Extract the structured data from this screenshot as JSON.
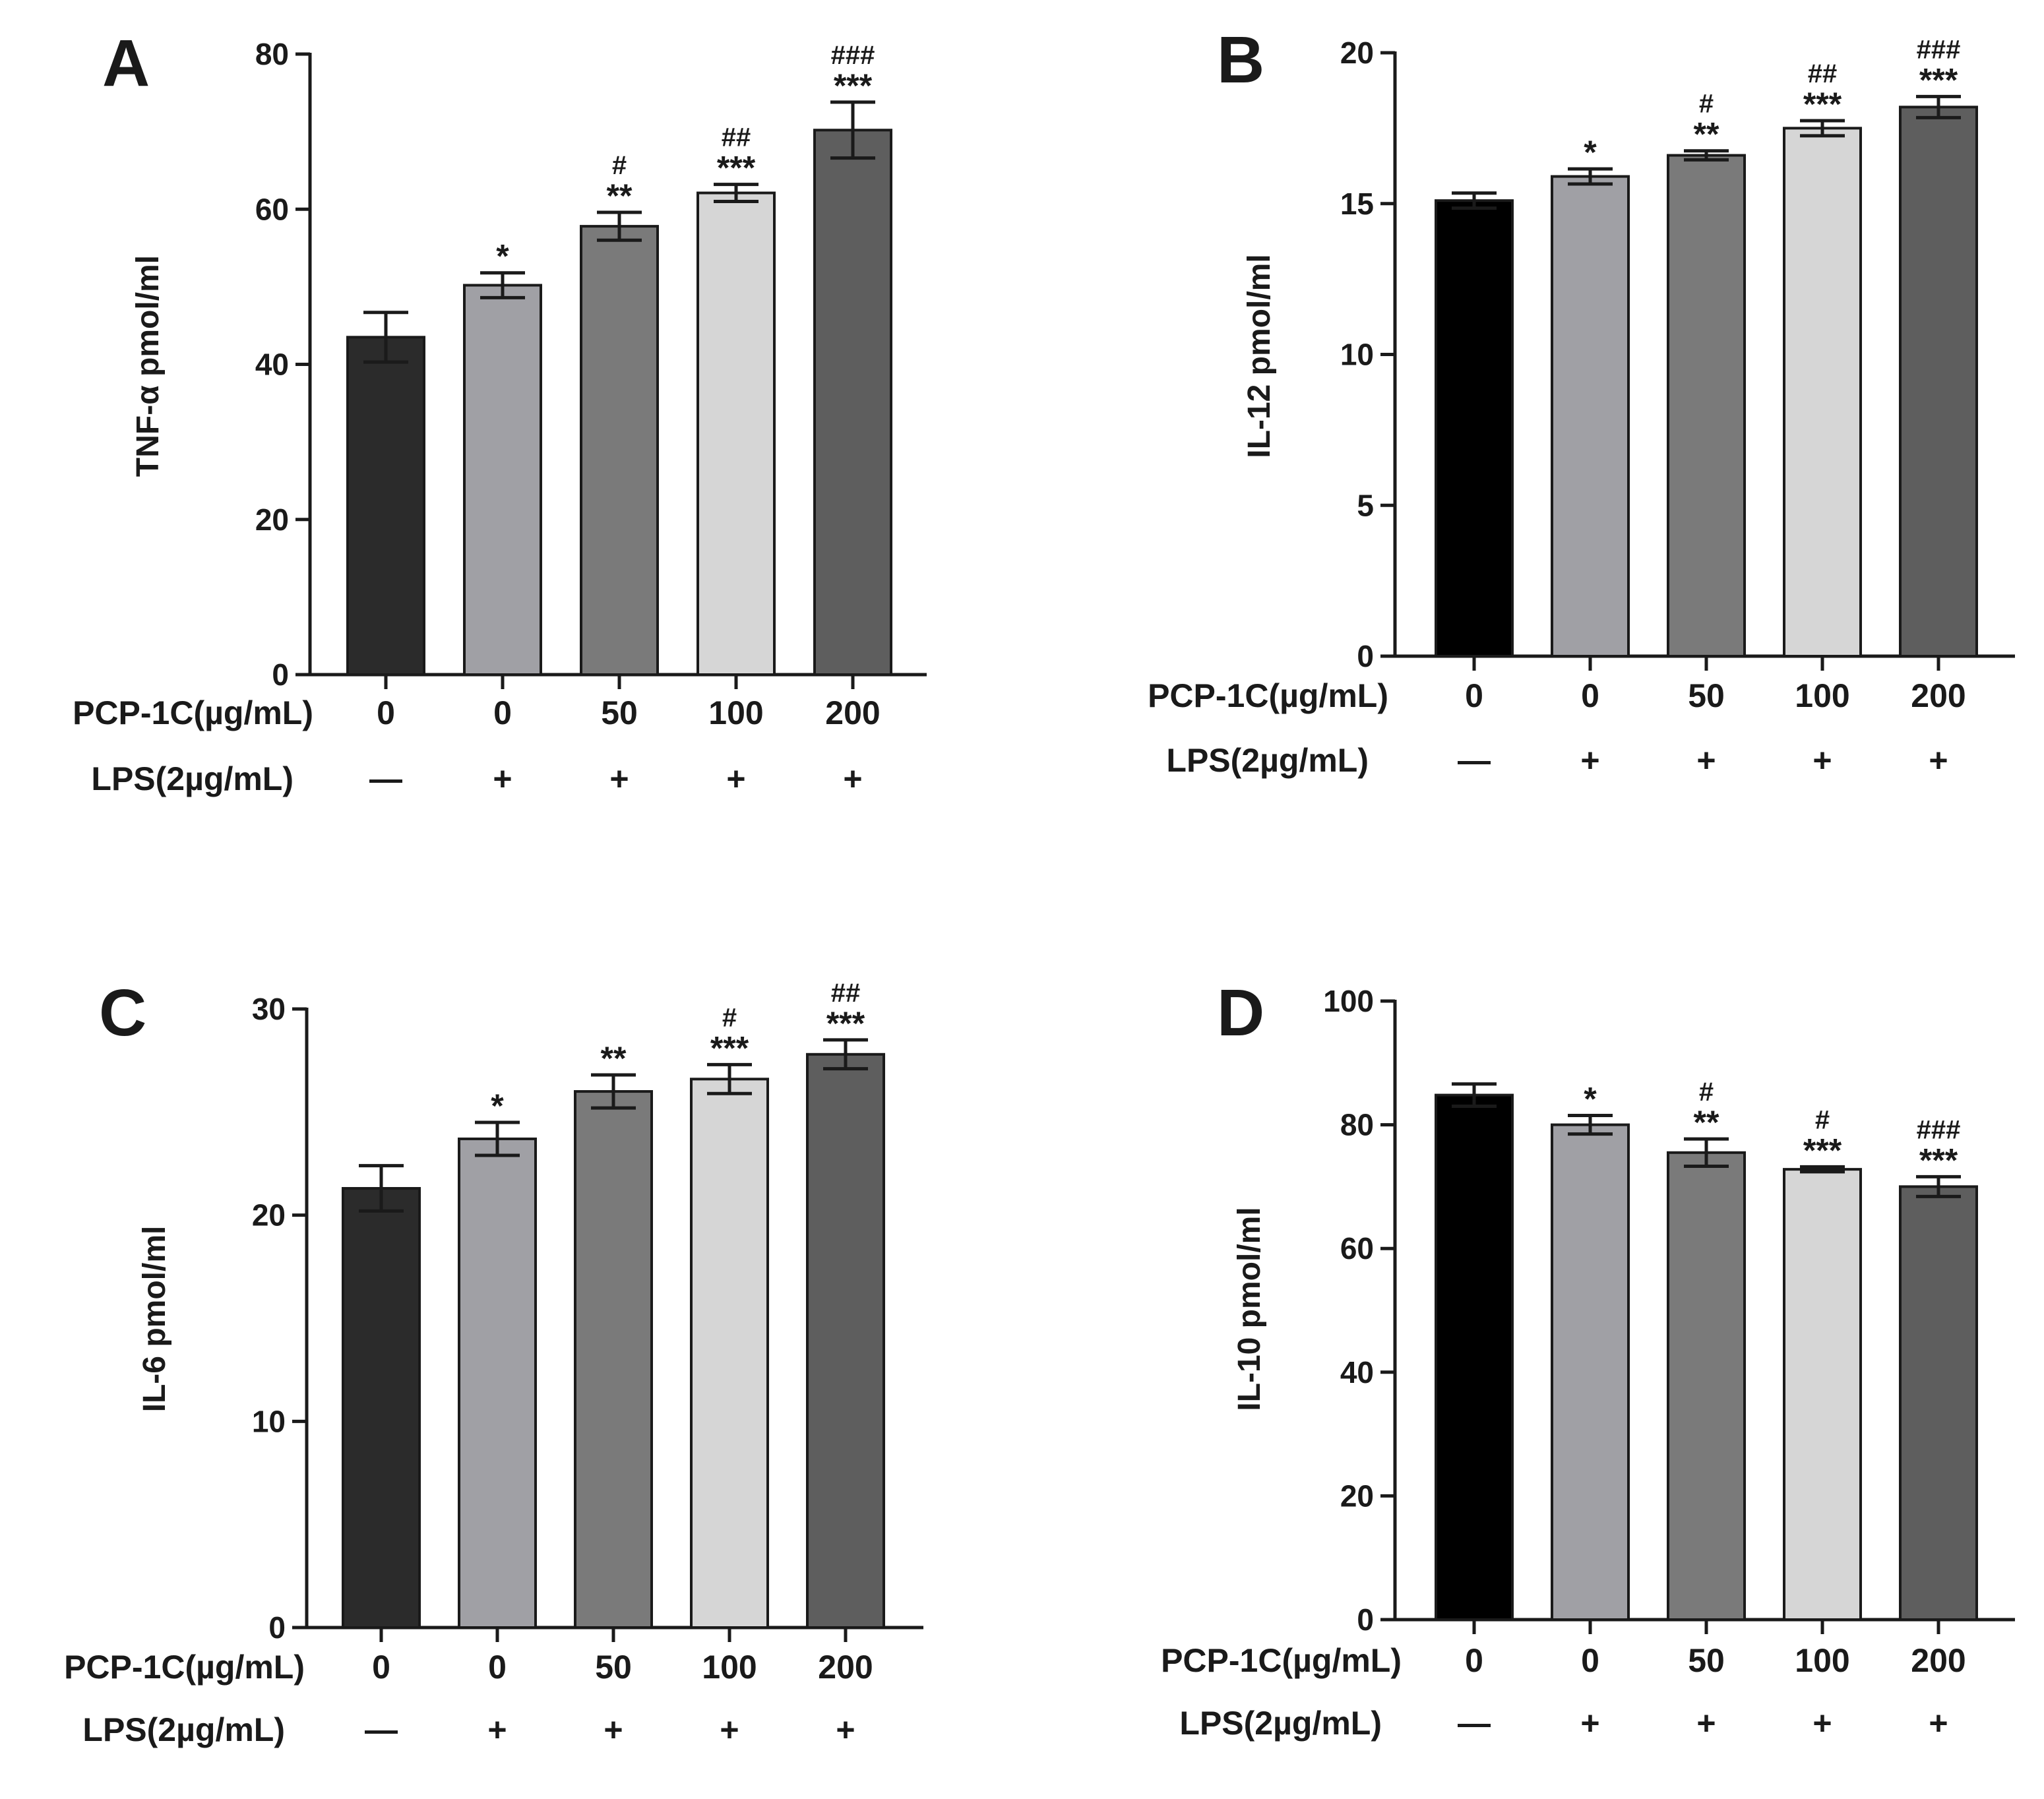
{
  "figure": {
    "treatment_label": "PCP-1C(µg/mL)",
    "lps_label": "LPS(2µg/mL)",
    "doses": [
      "0",
      "0",
      "50",
      "100",
      "200"
    ],
    "lps": [
      "—",
      "+",
      "+",
      "+",
      "+"
    ],
    "bar_colors": [
      "#2b2b2b",
      "#a0a0a5",
      "#7a7a7a",
      "#d6d6d6",
      "#5e5e5e"
    ]
  },
  "chart_data": [
    {
      "panel": "A",
      "type": "bar",
      "ylabel": "TNF-α pmol/ml",
      "ylim": [
        0,
        80
      ],
      "yticks": [
        0,
        20,
        40,
        60,
        80
      ],
      "categories": [
        "0",
        "0",
        "50",
        "100",
        "200"
      ],
      "values": [
        43.5,
        50.2,
        57.8,
        62.1,
        70.2
      ],
      "errors": [
        3.2,
        1.6,
        1.8,
        1.1,
        3.6
      ],
      "sig_star": [
        "",
        "*",
        "**",
        "***",
        "***"
      ],
      "sig_hash": [
        "",
        "",
        "#",
        "##",
        "###"
      ],
      "first_bar_color": "#2b2b2b"
    },
    {
      "panel": "B",
      "type": "bar",
      "ylabel": "IL-12 pmol/ml",
      "ylim": [
        0,
        20
      ],
      "yticks": [
        0,
        5,
        10,
        15,
        20
      ],
      "categories": [
        "0",
        "0",
        "50",
        "100",
        "200"
      ],
      "values": [
        15.1,
        15.9,
        16.6,
        17.5,
        18.2
      ],
      "errors": [
        0.25,
        0.25,
        0.15,
        0.25,
        0.35
      ],
      "sig_star": [
        "",
        "*",
        "**",
        "***",
        "***"
      ],
      "sig_hash": [
        "",
        "",
        "#",
        "##",
        "###"
      ],
      "first_bar_color": "#000000"
    },
    {
      "panel": "C",
      "type": "bar",
      "ylabel": "IL-6 pmol/ml",
      "ylim": [
        0,
        30
      ],
      "yticks": [
        0,
        10,
        20,
        30
      ],
      "categories": [
        "0",
        "0",
        "50",
        "100",
        "200"
      ],
      "values": [
        21.3,
        23.7,
        26.0,
        26.6,
        27.8
      ],
      "errors": [
        1.1,
        0.8,
        0.8,
        0.7,
        0.7
      ],
      "sig_star": [
        "",
        "*",
        "**",
        "***",
        "***"
      ],
      "sig_hash": [
        "",
        "",
        "",
        "#",
        "##"
      ],
      "first_bar_color": "#2b2b2b"
    },
    {
      "panel": "D",
      "type": "bar",
      "ylabel": "IL-10 pmol/ml",
      "ylim": [
        0,
        100
      ],
      "yticks": [
        0,
        20,
        40,
        60,
        80,
        100
      ],
      "categories": [
        "0",
        "0",
        "50",
        "100",
        "200"
      ],
      "values": [
        84.8,
        80.0,
        75.5,
        72.8,
        70.0
      ],
      "errors": [
        1.8,
        1.5,
        2.2,
        0.4,
        1.6
      ],
      "sig_star": [
        "",
        "*",
        "**",
        "***",
        "***"
      ],
      "sig_hash": [
        "",
        "",
        "#",
        "#",
        "###"
      ],
      "first_bar_color": "#000000"
    }
  ]
}
